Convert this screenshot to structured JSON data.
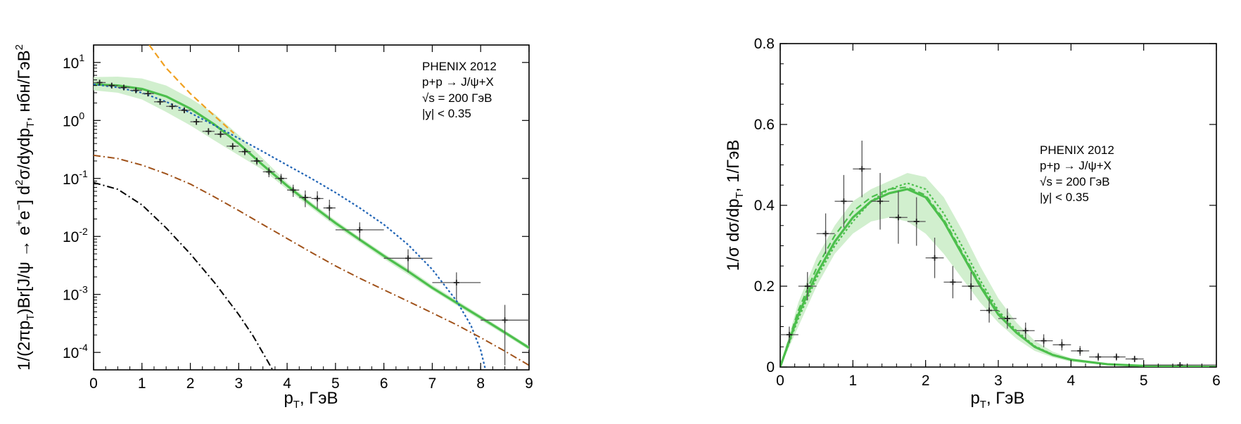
{
  "chart_data": [
    {
      "type": "line",
      "xlabel": "p_T, ГэВ",
      "ylabel": "1/(2πp_T)Br[J/ψ → e⁺e⁻] d²σ/dydp_T, нбн/ГэВ²",
      "xlim": [
        0,
        9
      ],
      "ylim": [
        5e-05,
        20
      ],
      "log_y": true,
      "x_ticks": [
        0,
        1,
        2,
        3,
        4,
        5,
        6,
        7,
        8,
        9
      ],
      "y_ticks": [
        {
          "value": 0.0001,
          "label": "10",
          "exp": "-4"
        },
        {
          "value": 0.001,
          "label": "10",
          "exp": "-3"
        },
        {
          "value": 0.01,
          "label": "10",
          "exp": "-2"
        },
        {
          "value": 0.1,
          "label": "10",
          "exp": "-1"
        },
        {
          "value": 1,
          "label": "10",
          "exp": "0"
        },
        {
          "value": 10,
          "label": "10",
          "exp": "1"
        }
      ],
      "annotation": [
        "PHENIX 2012",
        "p+p → J/ψ+X",
        "√s = 200 ГэВ",
        "|y| < 0.35"
      ],
      "colors": {
        "model": "#4cbf4c",
        "band": "#c9ecc5",
        "blue": "#1f63b5",
        "orange": "#f0a020",
        "brown": "#a0521a",
        "black": "#000000",
        "data": "#333333"
      },
      "data_points": [
        {
          "x": 0.125,
          "y": 4.5,
          "xerr": 0.125,
          "yerr": 0.5
        },
        {
          "x": 0.375,
          "y": 4.0,
          "xerr": 0.125,
          "yerr": 0.45
        },
        {
          "x": 0.625,
          "y": 3.7,
          "xerr": 0.125,
          "yerr": 0.4
        },
        {
          "x": 0.875,
          "y": 3.3,
          "xerr": 0.125,
          "yerr": 0.35
        },
        {
          "x": 1.125,
          "y": 2.9,
          "xerr": 0.125,
          "yerr": 0.3
        },
        {
          "x": 1.375,
          "y": 2.1,
          "xerr": 0.125,
          "yerr": 0.25
        },
        {
          "x": 1.625,
          "y": 1.75,
          "xerr": 0.125,
          "yerr": 0.2
        },
        {
          "x": 1.875,
          "y": 1.5,
          "xerr": 0.125,
          "yerr": 0.17
        },
        {
          "x": 2.125,
          "y": 0.95,
          "xerr": 0.125,
          "yerr": 0.12
        },
        {
          "x": 2.375,
          "y": 0.65,
          "xerr": 0.125,
          "yerr": 0.09
        },
        {
          "x": 2.625,
          "y": 0.58,
          "xerr": 0.125,
          "yerr": 0.08
        },
        {
          "x": 2.875,
          "y": 0.36,
          "xerr": 0.125,
          "yerr": 0.05
        },
        {
          "x": 3.125,
          "y": 0.29,
          "xerr": 0.125,
          "yerr": 0.04
        },
        {
          "x": 3.375,
          "y": 0.2,
          "xerr": 0.125,
          "yerr": 0.03
        },
        {
          "x": 3.625,
          "y": 0.13,
          "xerr": 0.125,
          "yerr": 0.025
        },
        {
          "x": 3.875,
          "y": 0.1,
          "xerr": 0.125,
          "yerr": 0.02
        },
        {
          "x": 4.125,
          "y": 0.063,
          "xerr": 0.125,
          "yerr": 0.015
        },
        {
          "x": 4.375,
          "y": 0.047,
          "xerr": 0.125,
          "yerr": 0.015
        },
        {
          "x": 4.625,
          "y": 0.045,
          "xerr": 0.125,
          "yerr": 0.015
        },
        {
          "x": 4.875,
          "y": 0.031,
          "xerr": 0.125,
          "yerr": 0.012
        },
        {
          "x": 5.5,
          "y": 0.013,
          "xerr": 0.5,
          "yerr": 0.0045
        },
        {
          "x": 6.5,
          "y": 0.0042,
          "xerr": 0.5,
          "yerr": 0.0018
        },
        {
          "x": 7.5,
          "y": 0.0016,
          "xerr": 0.5,
          "yerr": 0.0008
        },
        {
          "x": 8.5,
          "y": 0.00036,
          "xerr": 0.5,
          "yerr": 0.0003
        }
      ],
      "series": [
        {
          "style": "solid",
          "color": "#4cbf4c",
          "x": [
            0,
            0.5,
            1,
            1.5,
            2,
            2.5,
            3,
            3.5,
            4,
            4.5,
            5,
            5.5,
            6,
            6.5,
            7,
            7.5,
            8,
            8.5,
            9
          ],
          "y": [
            4.2,
            4.0,
            3.5,
            2.6,
            1.6,
            0.85,
            0.4,
            0.17,
            0.075,
            0.035,
            0.017,
            0.0088,
            0.0046,
            0.0025,
            0.0013,
            0.00072,
            0.0004,
            0.00022,
            0.00012
          ]
        },
        {
          "style": "dotted",
          "color": "#1f63b5",
          "x": [
            0,
            0.5,
            1,
            1.5,
            2,
            2.5,
            3,
            3.5,
            4,
            4.5,
            5,
            5.5,
            6,
            6.5,
            7,
            7.5,
            7.8,
            8.0,
            8.1
          ],
          "y": [
            4.2,
            3.7,
            3.0,
            2.1,
            1.35,
            0.82,
            0.49,
            0.29,
            0.17,
            0.1,
            0.057,
            0.031,
            0.016,
            0.0072,
            0.0027,
            0.00078,
            0.00029,
            0.00011,
            5e-05
          ]
        },
        {
          "style": "dashed",
          "color": "#f0a020",
          "x": [
            1.15,
            1.5,
            2,
            2.5,
            2.9
          ],
          "y": [
            20,
            8,
            2.9,
            1.2,
            0.6
          ]
        },
        {
          "style": "dashdot",
          "color": "#a0521a",
          "x": [
            0,
            0.5,
            1,
            1.5,
            2,
            2.5,
            3,
            3.5,
            4,
            4.5,
            5,
            5.5,
            6,
            6.5,
            7,
            7.5,
            8,
            8.5,
            9
          ],
          "y": [
            0.25,
            0.22,
            0.17,
            0.12,
            0.08,
            0.048,
            0.028,
            0.016,
            0.0092,
            0.0053,
            0.0031,
            0.0019,
            0.0012,
            0.00076,
            0.00048,
            0.0003,
            0.00018,
            0.000105,
            6e-05
          ]
        },
        {
          "style": "dashdot",
          "color": "#000000",
          "x": [
            0,
            0.5,
            1,
            1.5,
            2,
            2.5,
            3,
            3.3,
            3.6,
            3.7
          ],
          "y": [
            0.085,
            0.065,
            0.035,
            0.014,
            0.005,
            0.0016,
            0.00045,
            0.00019,
            7e-05,
            5e-05
          ]
        }
      ],
      "band": {
        "x": [
          0,
          0.5,
          1,
          1.5,
          2,
          2.5,
          3,
          3.5,
          4,
          4.5,
          5,
          5.5,
          6,
          6.5,
          7,
          7.5,
          8,
          8.5,
          9
        ],
        "lower": [
          3.3,
          3.0,
          2.3,
          1.4,
          0.82,
          0.45,
          0.25,
          0.14,
          0.065,
          0.031,
          0.015,
          0.0079,
          0.0041,
          0.0022,
          0.00118,
          0.00065,
          0.00036,
          0.0002,
          0.00011
        ],
        "upper": [
          5.6,
          5.7,
          5.3,
          4.0,
          2.4,
          1.3,
          0.56,
          0.22,
          0.085,
          0.039,
          0.019,
          0.0097,
          0.0051,
          0.0028,
          0.00145,
          0.0008,
          0.00044,
          0.00024,
          0.00013
        ]
      }
    },
    {
      "type": "line",
      "xlabel": "p_T, ГэВ",
      "ylabel": "1/σ dσ/dp_T, 1/ГэВ",
      "xlim": [
        0,
        6
      ],
      "ylim": [
        0,
        0.8
      ],
      "x_ticks": [
        0,
        1,
        2,
        3,
        4,
        5,
        6
      ],
      "y_ticks": [
        0,
        0.2,
        0.4,
        0.6,
        0.8
      ],
      "annotation": [
        "PHENIX 2012",
        "p+p → J/ψ+X",
        "√s = 200 ГэВ",
        "|y| < 0.35"
      ],
      "colors": {
        "model": "#4cbf4c",
        "band": "#c9ecc5",
        "data": "#333333"
      },
      "data_points": [
        {
          "x": 0.125,
          "y": 0.08,
          "xerr": 0.125,
          "yerr": 0.02
        },
        {
          "x": 0.375,
          "y": 0.2,
          "xerr": 0.125,
          "yerr": 0.035
        },
        {
          "x": 0.625,
          "y": 0.33,
          "xerr": 0.125,
          "yerr": 0.05
        },
        {
          "x": 0.875,
          "y": 0.41,
          "xerr": 0.125,
          "yerr": 0.065
        },
        {
          "x": 1.125,
          "y": 0.49,
          "xerr": 0.125,
          "yerr": 0.07
        },
        {
          "x": 1.375,
          "y": 0.41,
          "xerr": 0.125,
          "yerr": 0.07
        },
        {
          "x": 1.625,
          "y": 0.37,
          "xerr": 0.125,
          "yerr": 0.065
        },
        {
          "x": 1.875,
          "y": 0.36,
          "xerr": 0.125,
          "yerr": 0.06
        },
        {
          "x": 2.125,
          "y": 0.27,
          "xerr": 0.125,
          "yerr": 0.05
        },
        {
          "x": 2.375,
          "y": 0.21,
          "xerr": 0.125,
          "yerr": 0.04
        },
        {
          "x": 2.625,
          "y": 0.2,
          "xerr": 0.125,
          "yerr": 0.035
        },
        {
          "x": 2.875,
          "y": 0.14,
          "xerr": 0.125,
          "yerr": 0.03
        },
        {
          "x": 3.125,
          "y": 0.12,
          "xerr": 0.125,
          "yerr": 0.025
        },
        {
          "x": 3.375,
          "y": 0.09,
          "xerr": 0.125,
          "yerr": 0.02
        },
        {
          "x": 3.625,
          "y": 0.065,
          "xerr": 0.125,
          "yerr": 0.016
        },
        {
          "x": 3.875,
          "y": 0.055,
          "xerr": 0.125,
          "yerr": 0.014
        },
        {
          "x": 4.125,
          "y": 0.04,
          "xerr": 0.125,
          "yerr": 0.012
        },
        {
          "x": 4.375,
          "y": 0.025,
          "xerr": 0.125,
          "yerr": 0.01
        },
        {
          "x": 4.625,
          "y": 0.025,
          "xerr": 0.125,
          "yerr": 0.009
        },
        {
          "x": 4.875,
          "y": 0.02,
          "xerr": 0.125,
          "yerr": 0.008
        },
        {
          "x": 5.5,
          "y": 0.005,
          "xerr": 0.5,
          "yerr": 0.005
        }
      ],
      "series": [
        {
          "style": "solid",
          "color": "#4cbf4c",
          "x": [
            0,
            0.25,
            0.5,
            0.75,
            1,
            1.25,
            1.5,
            1.75,
            2,
            2.25,
            2.5,
            2.75,
            3,
            3.25,
            3.5,
            3.75,
            4,
            4.5,
            5,
            5.5,
            6
          ],
          "y": [
            0,
            0.13,
            0.23,
            0.31,
            0.37,
            0.41,
            0.43,
            0.44,
            0.42,
            0.36,
            0.28,
            0.2,
            0.13,
            0.085,
            0.05,
            0.03,
            0.018,
            0.007,
            0.003,
            0.0012,
            0.0005
          ]
        },
        {
          "style": "dashed",
          "color": "#4cbf4c",
          "x": [
            0,
            0.25,
            0.5,
            0.75,
            1,
            1.25,
            1.5,
            1.75,
            2,
            2.25,
            2.5,
            2.75,
            3,
            3.25,
            3.5,
            3.75,
            4,
            4.5,
            5,
            5.5,
            6
          ],
          "y": [
            0,
            0.14,
            0.245,
            0.325,
            0.385,
            0.42,
            0.44,
            0.445,
            0.425,
            0.365,
            0.285,
            0.205,
            0.135,
            0.085,
            0.05,
            0.03,
            0.018,
            0.007,
            0.003,
            0.0012,
            0.0005
          ]
        },
        {
          "style": "dotted",
          "color": "#4cbf4c",
          "x": [
            0,
            0.25,
            0.5,
            0.75,
            1,
            1.25,
            1.5,
            1.75,
            2,
            2.25,
            2.5,
            2.75,
            3,
            3.25,
            3.5,
            3.75,
            4,
            4.5,
            5,
            5.5,
            6
          ],
          "y": [
            0,
            0.12,
            0.22,
            0.3,
            0.36,
            0.41,
            0.44,
            0.455,
            0.44,
            0.38,
            0.3,
            0.215,
            0.14,
            0.09,
            0.052,
            0.031,
            0.018,
            0.007,
            0.003,
            0.0012,
            0.0005
          ]
        }
      ],
      "band": {
        "x": [
          0,
          0.25,
          0.5,
          0.75,
          1,
          1.25,
          1.5,
          1.75,
          2,
          2.25,
          2.5,
          2.75,
          3,
          3.25,
          3.5,
          3.75,
          4,
          4.5,
          5,
          5.5,
          6
        ],
        "lower": [
          0,
          0.1,
          0.2,
          0.28,
          0.33,
          0.36,
          0.37,
          0.36,
          0.33,
          0.28,
          0.22,
          0.16,
          0.11,
          0.07,
          0.04,
          0.024,
          0.013,
          0.005,
          0.002,
          0.001,
          0.0004
        ],
        "upper": [
          0,
          0.16,
          0.27,
          0.35,
          0.41,
          0.44,
          0.46,
          0.48,
          0.47,
          0.42,
          0.34,
          0.25,
          0.17,
          0.11,
          0.065,
          0.038,
          0.022,
          0.009,
          0.004,
          0.0015,
          0.0006
        ]
      }
    }
  ]
}
